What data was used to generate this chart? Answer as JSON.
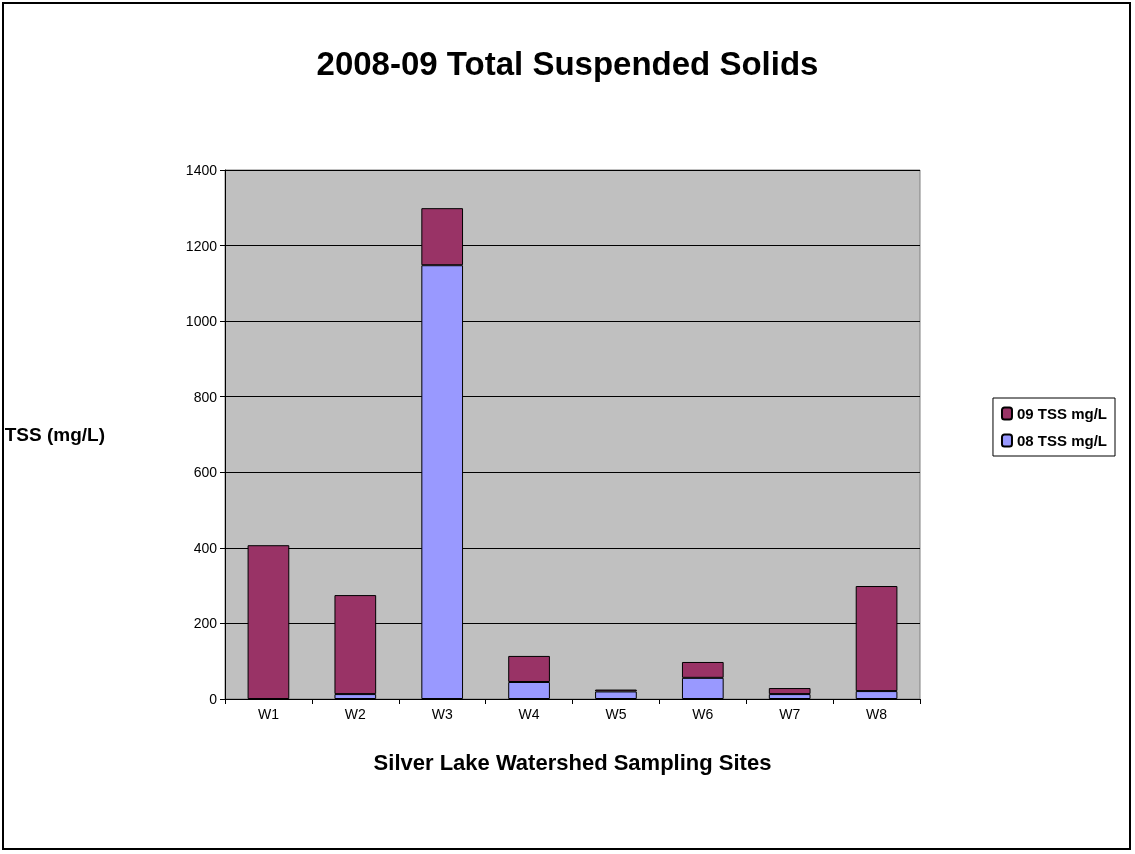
{
  "chart_data": {
    "type": "bar",
    "title": "2008-09 Total Suspended Solids",
    "xlabel": "Silver Lake Watershed Sampling Sites",
    "ylabel": "TSS (mg/L)",
    "categories": [
      "W1",
      "W2",
      "W3",
      "W4",
      "W5",
      "W6",
      "W7",
      "W8"
    ],
    "stacked": true,
    "series": [
      {
        "name": "08 TSS mg/L",
        "color": "#9999ff",
        "values": [
          null,
          13,
          1148,
          45,
          20,
          56,
          13,
          21
        ]
      },
      {
        "name": "09 TSS mg/L",
        "color": "#993366",
        "values": [
          407,
          262,
          151,
          69,
          5,
          42,
          16,
          278
        ]
      }
    ],
    "ylim": [
      0,
      1400
    ],
    "yticks": [
      0,
      200,
      400,
      600,
      800,
      1000,
      1200,
      1400
    ],
    "grid": "y",
    "legend": "right"
  }
}
